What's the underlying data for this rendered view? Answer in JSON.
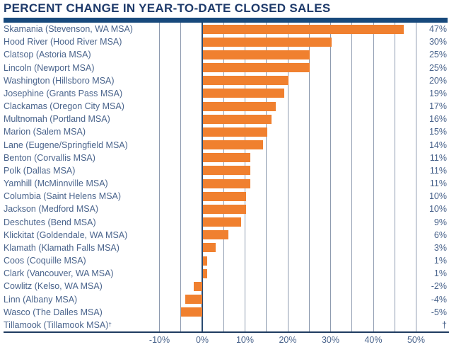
{
  "chart_data": {
    "type": "bar",
    "orientation": "horizontal",
    "title": "PERCENT CHANGE IN YEAR-TO-DATE CLOSED SALES",
    "categories": [
      "Skamania (Stevenson, WA MSA)",
      "Hood River (Hood River MSA)",
      "Clatsop (Astoria MSA)",
      "Lincoln (Newport MSA)",
      "Washington (Hillsboro MSA)",
      "Josephine (Grants Pass MSA)",
      "Clackamas (Oregon City MSA)",
      "Multnomah (Portland MSA)",
      "Marion (Salem MSA)",
      "Lane (Eugene/Springfield MSA)",
      "Benton (Corvallis MSA)",
      "Polk (Dallas MSA)",
      "Yamhill (McMinnville MSA)",
      "Columbia (Saint Helens MSA)",
      "Jackson (Medford MSA)",
      "Deschutes (Bend MSA)",
      "Klickitat (Goldendale, WA MSA)",
      "Klamath (Klamath Falls MSA)",
      "Coos (Coquille MSA)",
      "Clark (Vancouver, WA MSA)",
      "Cowlitz (Kelso, WA MSA)",
      "Linn (Albany MSA)",
      "Wasco (The Dalles MSA)",
      "Tillamook (Tillamook MSA)†"
    ],
    "values": [
      47,
      30,
      25,
      25,
      20,
      19,
      17,
      16,
      15,
      14,
      11,
      11,
      11,
      10,
      10,
      9,
      6,
      3,
      1,
      1,
      -2,
      -4,
      -5,
      null
    ],
    "value_labels": [
      "47%",
      "30%",
      "25%",
      "25%",
      "20%",
      "19%",
      "17%",
      "16%",
      "15%",
      "14%",
      "11%",
      "11%",
      "11%",
      "10%",
      "10%",
      "9%",
      "6%",
      "3%",
      "1%",
      "1%",
      "-2%",
      "-4%",
      "-5%",
      "†"
    ],
    "x_tick_labels": [
      "-10%",
      "0%",
      "10%",
      "20%",
      "30%",
      "40%",
      "50%"
    ],
    "x_tick_values": [
      -10,
      0,
      10,
      20,
      30,
      40,
      50
    ],
    "gridline_step_pct": 5,
    "xlim": [
      -10,
      50
    ],
    "grid": true,
    "legend": "none",
    "footnote_marker": "†"
  },
  "colors": {
    "bar": "#F0802F",
    "title_text": "#1E3A6A",
    "title_rule": "#17497C",
    "label_text": "#4A648C",
    "gridline": "#8D9AAF",
    "zero_line": "#2A4A70",
    "axis_line": "#203C60",
    "background": "#FFFFFF"
  }
}
